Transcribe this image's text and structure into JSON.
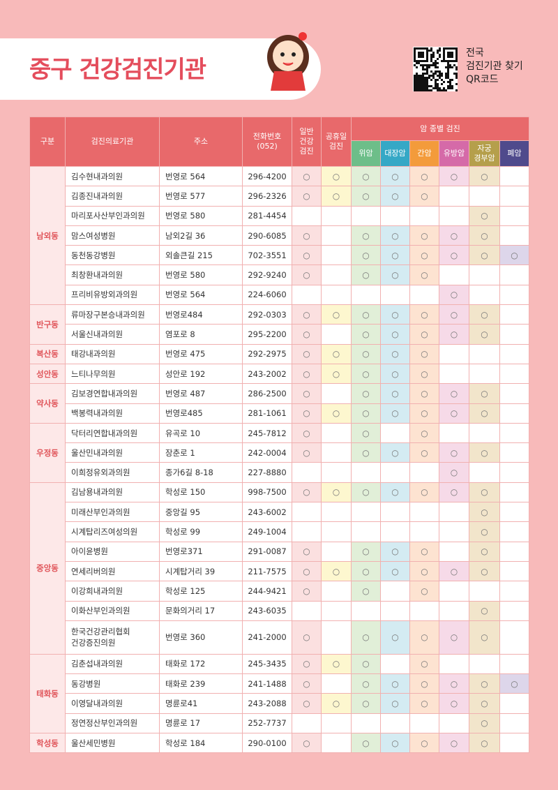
{
  "header": {
    "title": "중구 건강검진기관",
    "qr_text": "전국\n검진기관 찾기\nQR코드"
  },
  "table": {
    "columns": [
      "구분",
      "검진의료기관",
      "주소",
      "전화번호\n(052)",
      "일반\n건강\n검진",
      "공휴일\n검진"
    ],
    "cancer_group": "암 종별 검진",
    "cancer_columns": [
      "위암",
      "대장암",
      "간암",
      "유방암",
      "자궁\n경부암",
      "폐암"
    ],
    "groups": [
      {
        "district": "남외동",
        "rows": [
          {
            "name": "김수현내과의원",
            "address": "번영로 564",
            "phone": "296-4200",
            "checks": [
              "○",
              "○",
              "○",
              "○",
              "○",
              "○",
              "○",
              null
            ]
          },
          {
            "name": "김종진내과의원",
            "address": "번영로 577",
            "phone": "296-2326",
            "checks": [
              "○",
              "○",
              "○",
              "○",
              "○",
              null,
              null,
              null
            ]
          },
          {
            "name": "마리포사산부인과의원",
            "address": "번영로 580",
            "phone": "281-4454",
            "checks": [
              null,
              null,
              null,
              null,
              null,
              null,
              "○",
              null
            ]
          },
          {
            "name": "맘스여성병원",
            "address": "남외2길 36",
            "phone": "290-6085",
            "checks": [
              "○",
              null,
              "○",
              "○",
              "○",
              "○",
              "○",
              null
            ]
          },
          {
            "name": "동천동강병원",
            "address": "외솔큰길 215",
            "phone": "702-3551",
            "checks": [
              "○",
              null,
              "○",
              "○",
              "○",
              "○",
              "○",
              "○"
            ]
          },
          {
            "name": "최창환내과의원",
            "address": "번영로 580",
            "phone": "292-9240",
            "checks": [
              "○",
              null,
              "○",
              "○",
              "○",
              null,
              null,
              null
            ]
          },
          {
            "name": "프리비유방외과의원",
            "address": "번영로 564",
            "phone": "224-6060",
            "checks": [
              null,
              null,
              null,
              null,
              null,
              "○",
              null,
              null
            ]
          }
        ]
      },
      {
        "district": "반구동",
        "rows": [
          {
            "name": "류마장구본승내과의원",
            "address": "번영로484",
            "phone": "292-0303",
            "checks": [
              "○",
              "○",
              "○",
              "○",
              "○",
              "○",
              "○",
              null
            ]
          },
          {
            "name": "서울신내과의원",
            "address": "염포로 8",
            "phone": "295-2200",
            "checks": [
              "○",
              null,
              "○",
              "○",
              "○",
              "○",
              "○",
              null
            ]
          }
        ]
      },
      {
        "district": "복산동",
        "rows": [
          {
            "name": "태강내과의원",
            "address": "번영로 475",
            "phone": "292-2975",
            "checks": [
              "○",
              "○",
              "○",
              "○",
              "○",
              null,
              null,
              null
            ]
          }
        ]
      },
      {
        "district": "성안동",
        "rows": [
          {
            "name": "느티나무의원",
            "address": "성안로 192",
            "phone": "243-2002",
            "checks": [
              "○",
              "○",
              "○",
              "○",
              "○",
              null,
              null,
              null
            ]
          }
        ]
      },
      {
        "district": "약사동",
        "rows": [
          {
            "name": "김보경연합내과의원",
            "address": "번영로 487",
            "phone": "286-2500",
            "checks": [
              "○",
              null,
              "○",
              "○",
              "○",
              "○",
              "○",
              null
            ]
          },
          {
            "name": "백봉력내과의원",
            "address": "번영로485",
            "phone": "281-1061",
            "checks": [
              "○",
              "○",
              "○",
              "○",
              "○",
              "○",
              "○",
              null
            ]
          }
        ]
      },
      {
        "district": "우정동",
        "rows": [
          {
            "name": "닥터리연합내과의원",
            "address": "유곡로 10",
            "phone": "245-7812",
            "checks": [
              "○",
              null,
              "○",
              null,
              "○",
              null,
              null,
              null
            ]
          },
          {
            "name": "울산민내과의원",
            "address": "장춘로 1",
            "phone": "242-0004",
            "checks": [
              "○",
              null,
              "○",
              "○",
              "○",
              "○",
              "○",
              null
            ]
          },
          {
            "name": "이희정유외과의원",
            "address": "종가6길 8-18",
            "phone": "227-8880",
            "checks": [
              null,
              null,
              null,
              null,
              null,
              "○",
              null,
              null
            ]
          }
        ]
      },
      {
        "district": "중앙동",
        "rows": [
          {
            "name": "김남용내과의원",
            "address": "학성로 150",
            "phone": "998-7500",
            "checks": [
              "○",
              "○",
              "○",
              "○",
              "○",
              "○",
              "○",
              null
            ]
          },
          {
            "name": "미래산부인과의원",
            "address": "중앙길 95",
            "phone": "243-6002",
            "checks": [
              null,
              null,
              null,
              null,
              null,
              null,
              "○",
              null
            ]
          },
          {
            "name": "시계탑리즈여성의원",
            "address": "학성로 99",
            "phone": "249-1004",
            "checks": [
              null,
              null,
              null,
              null,
              null,
              null,
              "○",
              null
            ]
          },
          {
            "name": "아이윤병원",
            "address": "번영로371",
            "phone": "291-0087",
            "checks": [
              "○",
              null,
              "○",
              "○",
              "○",
              null,
              "○",
              null
            ]
          },
          {
            "name": "연세리버의원",
            "address": "시계탑거리 39",
            "phone": "211-7575",
            "checks": [
              "○",
              "○",
              "○",
              "○",
              "○",
              "○",
              "○",
              null
            ]
          },
          {
            "name": "이강희내과의원",
            "address": "학성로 125",
            "phone": "244-9421",
            "checks": [
              "○",
              null,
              "○",
              null,
              "○",
              null,
              null,
              null
            ]
          },
          {
            "name": "이화산부인과의원",
            "address": "문화의거리 17",
            "phone": "243-6035",
            "checks": [
              null,
              null,
              null,
              null,
              null,
              null,
              "○",
              null
            ]
          },
          {
            "name": "한국건강관리협회\n건강증진의원",
            "address": "번영로 360",
            "phone": "241-2000",
            "checks": [
              "○",
              null,
              "○",
              "○",
              "○",
              "○",
              "○",
              null
            ]
          }
        ]
      },
      {
        "district": "태화동",
        "rows": [
          {
            "name": "김춘섭내과의원",
            "address": "태화로 172",
            "phone": "245-3435",
            "checks": [
              "○",
              "○",
              "○",
              null,
              "○",
              null,
              null,
              null
            ]
          },
          {
            "name": "동강병원",
            "address": "태화로 239",
            "phone": "241-1488",
            "checks": [
              "○",
              null,
              "○",
              "○",
              "○",
              "○",
              "○",
              "○"
            ]
          },
          {
            "name": "이영달내과의원",
            "address": "명륜로41",
            "phone": "243-2088",
            "checks": [
              "○",
              "○",
              "○",
              "○",
              "○",
              "○",
              "○",
              null
            ]
          },
          {
            "name": "정연정산부인과의원",
            "address": "명륜로 17",
            "phone": "252-7737",
            "checks": [
              null,
              null,
              null,
              null,
              null,
              null,
              "○",
              null
            ]
          }
        ]
      },
      {
        "district": "학성동",
        "rows": [
          {
            "name": "울산세민병원",
            "address": "학성로 184",
            "phone": "290-0100",
            "checks": [
              "○",
              null,
              "○",
              "○",
              "○",
              "○",
              "○",
              null
            ]
          }
        ]
      }
    ]
  }
}
